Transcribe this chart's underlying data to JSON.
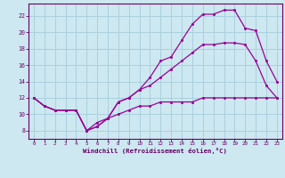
{
  "background_color": "#cde8f0",
  "plot_bg_color": "#cde8f0",
  "grid_color": "#aacfdf",
  "line_color": "#990099",
  "xlabel": "Windchill (Refroidissement éolien,°C)",
  "xlabel_color": "#660066",
  "tick_color": "#660066",
  "spine_color": "#660066",
  "xlim": [
    -0.5,
    23.5
  ],
  "ylim": [
    7.0,
    23.5
  ],
  "yticks": [
    8,
    10,
    12,
    14,
    16,
    18,
    20,
    22
  ],
  "xticks": [
    0,
    1,
    2,
    3,
    4,
    5,
    6,
    7,
    8,
    9,
    10,
    11,
    12,
    13,
    14,
    15,
    16,
    17,
    18,
    19,
    20,
    21,
    22,
    23
  ],
  "line1_x": [
    0,
    1,
    2,
    3,
    4,
    5,
    6,
    7,
    8,
    9,
    10,
    11,
    12,
    13,
    14,
    15,
    16,
    17,
    18,
    19,
    20,
    21,
    22,
    23
  ],
  "line1_y": [
    12,
    11,
    10.5,
    10.5,
    10.5,
    8,
    9,
    9.5,
    10,
    10.5,
    11,
    11,
    11.5,
    11.5,
    11.5,
    11.5,
    12,
    12,
    12,
    12,
    12,
    12,
    12,
    12
  ],
  "line2_x": [
    0,
    1,
    2,
    3,
    4,
    5,
    6,
    7,
    8,
    9,
    10,
    11,
    12,
    13,
    14,
    15,
    16,
    17,
    18,
    19,
    20,
    21,
    22,
    23
  ],
  "line2_y": [
    12,
    11,
    10.5,
    10.5,
    10.5,
    8,
    8.5,
    9.5,
    11.5,
    12,
    13,
    14.5,
    16.5,
    17,
    19.0,
    21.0,
    22.2,
    22.2,
    22.7,
    22.7,
    20.5,
    20.2,
    16.5,
    14
  ],
  "line3_x": [
    0,
    1,
    2,
    3,
    4,
    5,
    6,
    7,
    8,
    9,
    10,
    11,
    12,
    13,
    14,
    15,
    16,
    17,
    18,
    19,
    20,
    21,
    22,
    23
  ],
  "line3_y": [
    12,
    11,
    10.5,
    10.5,
    10.5,
    8,
    8.5,
    9.5,
    11.5,
    12,
    13,
    13.5,
    14.5,
    15.5,
    16.5,
    17.5,
    18.5,
    18.5,
    18.7,
    18.7,
    18.5,
    16.5,
    13.5,
    12
  ]
}
